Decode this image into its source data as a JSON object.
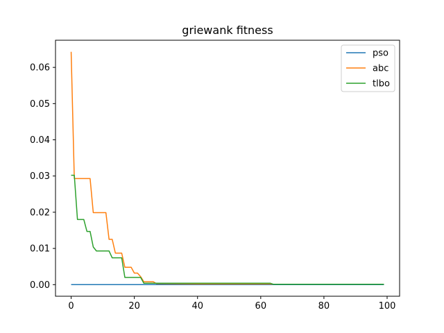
{
  "chart_data": {
    "type": "line",
    "title": "griewank fitness",
    "xlabel": "",
    "ylabel": "",
    "xlim": [
      -4.95,
      103.95
    ],
    "ylim": [
      -0.0032,
      0.0675
    ],
    "xticks": [
      0,
      20,
      40,
      60,
      80,
      100
    ],
    "yticks": [
      0.0,
      0.01,
      0.02,
      0.03,
      0.04,
      0.05,
      0.06
    ],
    "ytick_labels": [
      "0.00",
      "0.01",
      "0.02",
      "0.03",
      "0.04",
      "0.05",
      "0.06"
    ],
    "grid": false,
    "legend_position": "top-right",
    "series": [
      {
        "name": "pso",
        "color": "#1f77b4",
        "points": [
          [
            0,
            0.0
          ],
          [
            99,
            0.0
          ]
        ]
      },
      {
        "name": "abc",
        "color": "#ff7f0e",
        "points": [
          [
            0,
            0.0643
          ],
          [
            1,
            0.0293
          ],
          [
            2,
            0.0293
          ],
          [
            3,
            0.0293
          ],
          [
            4,
            0.0293
          ],
          [
            5,
            0.0293
          ],
          [
            6,
            0.0293
          ],
          [
            7,
            0.0199
          ],
          [
            8,
            0.0199
          ],
          [
            9,
            0.0199
          ],
          [
            10,
            0.0199
          ],
          [
            11,
            0.0199
          ],
          [
            12,
            0.0125
          ],
          [
            13,
            0.0125
          ],
          [
            14,
            0.0087
          ],
          [
            15,
            0.0087
          ],
          [
            16,
            0.0087
          ],
          [
            17,
            0.0048
          ],
          [
            18,
            0.0048
          ],
          [
            19,
            0.0048
          ],
          [
            20,
            0.0032
          ],
          [
            21,
            0.0032
          ],
          [
            22,
            0.0022
          ],
          [
            23,
            0.0008
          ],
          [
            24,
            0.0008
          ],
          [
            25,
            0.0008
          ],
          [
            26,
            0.0008
          ],
          [
            27,
            0.0003
          ],
          [
            40,
            0.0002
          ],
          [
            63,
            0.0002
          ],
          [
            64,
            0.0001
          ],
          [
            99,
            0.0001
          ]
        ]
      },
      {
        "name": "tlbo",
        "color": "#2ca02c",
        "points": [
          [
            0,
            0.0302
          ],
          [
            1,
            0.0302
          ],
          [
            2,
            0.018
          ],
          [
            3,
            0.018
          ],
          [
            4,
            0.018
          ],
          [
            5,
            0.0147
          ],
          [
            6,
            0.0147
          ],
          [
            7,
            0.0104
          ],
          [
            8,
            0.0093
          ],
          [
            9,
            0.0093
          ],
          [
            10,
            0.0093
          ],
          [
            11,
            0.0093
          ],
          [
            12,
            0.0093
          ],
          [
            13,
            0.0074
          ],
          [
            14,
            0.0074
          ],
          [
            15,
            0.0074
          ],
          [
            16,
            0.0074
          ],
          [
            17,
            0.002
          ],
          [
            18,
            0.002
          ],
          [
            19,
            0.002
          ],
          [
            20,
            0.002
          ],
          [
            21,
            0.002
          ],
          [
            22,
            0.002
          ],
          [
            23,
            0.0004
          ],
          [
            30,
            0.0004
          ],
          [
            50,
            0.0004
          ],
          [
            63,
            0.0004
          ],
          [
            64,
            0.0001
          ],
          [
            99,
            0.0001
          ]
        ]
      }
    ]
  }
}
